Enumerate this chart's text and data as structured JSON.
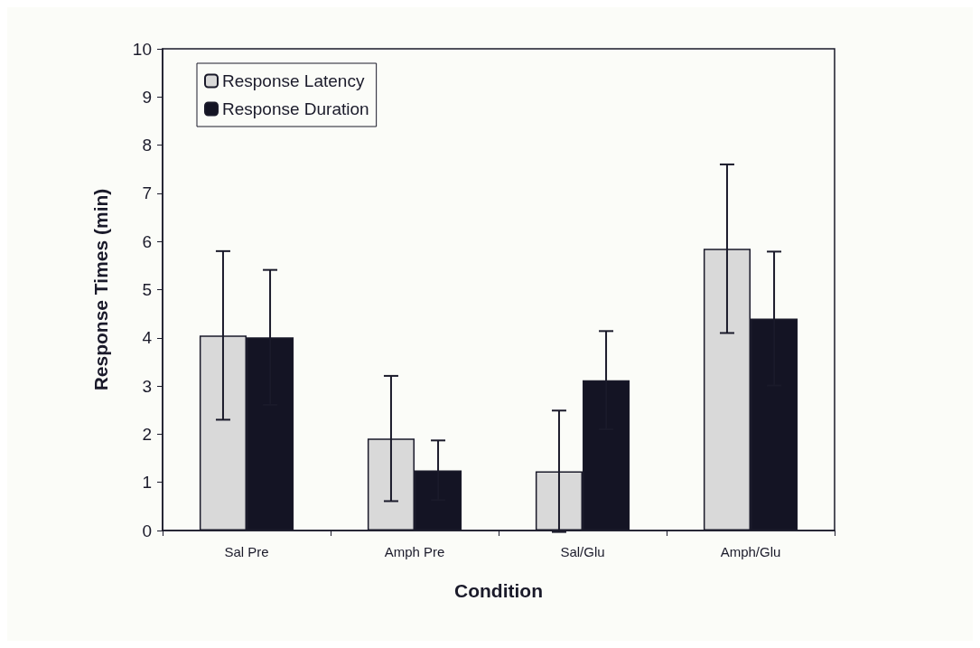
{
  "chart_data": {
    "type": "bar",
    "xlabel": "Condition",
    "ylabel": "Response Times (min)",
    "categories": [
      "Sal Pre",
      "Amph Pre",
      "Sal/Glu",
      "Amph/Glu"
    ],
    "series": [
      {
        "name": "Response Latency",
        "color": "#d9d9d9",
        "values": [
          4.05,
          1.91,
          1.23,
          5.85
        ],
        "errors": [
          1.75,
          1.3,
          1.26,
          1.75
        ]
      },
      {
        "name": "Response Duration",
        "color": "#141424",
        "values": [
          4.01,
          1.25,
          3.12,
          4.4
        ],
        "errors": [
          1.4,
          0.62,
          1.02,
          1.39
        ]
      }
    ],
    "ylim": [
      0,
      10
    ],
    "yticks": [
      0,
      1,
      2,
      3,
      4,
      5,
      6,
      7,
      8,
      9,
      10
    ],
    "grid": false,
    "legend": "top left"
  }
}
